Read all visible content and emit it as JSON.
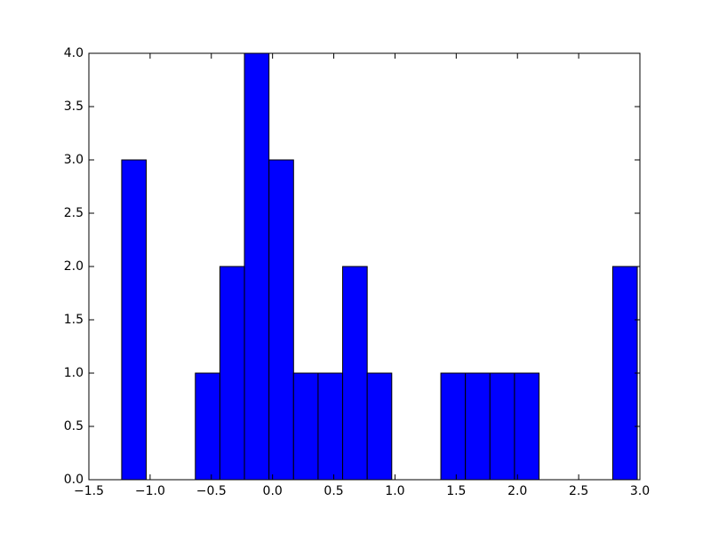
{
  "chart_data": {
    "type": "histogram",
    "color": "#0000ff",
    "bins": [
      -1.232,
      -1.0315,
      -0.831,
      -0.6305,
      -0.43,
      -0.2295,
      -0.029,
      0.1715,
      0.372,
      0.5725,
      0.773,
      0.9735,
      1.174,
      1.3745,
      1.575,
      1.7755,
      1.976,
      2.1765,
      2.377,
      2.5775,
      2.778,
      2.9785
    ],
    "values": [
      3,
      0,
      0,
      1,
      2,
      4,
      3,
      1,
      1,
      2,
      1,
      0,
      0,
      1,
      1,
      1,
      1,
      0,
      0,
      0,
      2
    ],
    "xlim": [
      -1.5,
      3.0
    ],
    "xticks": [
      {
        "value": -1.5,
        "label": "−1.5"
      },
      {
        "value": -1.0,
        "label": "−1.0"
      },
      {
        "value": -0.5,
        "label": "−0.5"
      },
      {
        "value": 0.0,
        "label": "0.0"
      },
      0.5,
      {
        "value": 1.0,
        "label": "1.0"
      },
      1.5,
      {
        "value": 2.0,
        "label": "2.0"
      },
      2.5,
      {
        "value": 3.0,
        "label": "3.0"
      }
    ],
    "ylim": [
      0,
      4.0
    ],
    "yticks": [
      {
        "value": 0,
        "label": "0.0"
      },
      0.5,
      {
        "value": 1.0,
        "label": "1.0"
      },
      1.5,
      {
        "value": 2.0,
        "label": "2.0"
      },
      2.5,
      {
        "value": 3.0,
        "label": "3.0"
      },
      3.5,
      {
        "value": 4.0,
        "label": "4.0"
      }
    ]
  }
}
